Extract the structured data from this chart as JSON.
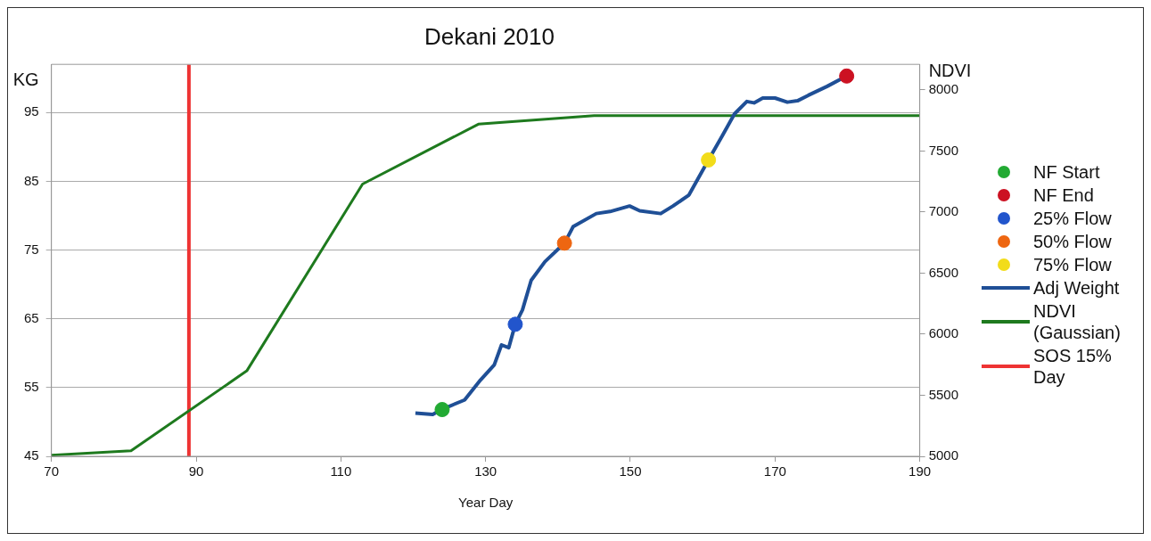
{
  "chart_data": {
    "type": "line",
    "title": "Dekani 2010",
    "xlabel": "Year Day",
    "ylabel": "KG",
    "y2label": "NDVI",
    "xlim": [
      70,
      190
    ],
    "xticks": [
      70,
      90,
      110,
      130,
      150,
      170,
      190
    ],
    "ylim": [
      45,
      102
    ],
    "yticks": [
      45,
      55,
      65,
      75,
      85,
      95
    ],
    "y2lim": [
      5000,
      8210
    ],
    "y2ticks": [
      5000,
      5500,
      6000,
      6500,
      7000,
      7500,
      8000
    ],
    "grid": "y",
    "legend": "right",
    "series": [
      {
        "name": "NF Start",
        "type": "scatter",
        "marker": "circle",
        "color": "#22aa33",
        "x": [
          124
        ],
        "values": [
          51.8
        ]
      },
      {
        "name": "NF End",
        "type": "scatter",
        "marker": "circle",
        "color": "#cc1122",
        "x": [
          179.9
        ],
        "values": [
          100.3
        ]
      },
      {
        "name": "25% Flow",
        "type": "scatter",
        "marker": "circle",
        "color": "#2255cc",
        "x": [
          134.1
        ],
        "values": [
          64.2
        ]
      },
      {
        "name": "50% Flow",
        "type": "scatter",
        "marker": "circle",
        "color": "#ee6611",
        "x": [
          140.9
        ],
        "values": [
          76.0
        ]
      },
      {
        "name": "75% Flow",
        "type": "scatter",
        "marker": "circle",
        "color": "#f2dc1a",
        "x": [
          160.8
        ],
        "values": [
          88.1
        ]
      },
      {
        "name": "Adj Weight",
        "marker": "none",
        "color": "#1f4f96",
        "x": [
          120.3,
          122.7,
          123.9,
          127.1,
          129.3,
          131.2,
          132.2,
          133.2,
          134.1,
          135.1,
          136.3,
          138.2,
          140.9,
          142.1,
          145.3,
          147.2,
          149.9,
          151.3,
          154.2,
          155.9,
          158.1,
          160.8,
          162.7,
          164.4,
          166.1,
          167.1,
          168.3,
          170.0,
          171.7,
          173.1,
          174.6,
          177.2,
          179.9
        ],
        "values": [
          51.3,
          51.1,
          51.8,
          53.2,
          56.1,
          58.3,
          61.2,
          60.8,
          64.2,
          66.3,
          70.6,
          73.3,
          76.0,
          78.4,
          80.3,
          80.6,
          81.4,
          80.7,
          80.3,
          81.4,
          83.0,
          88.1,
          91.6,
          94.8,
          96.6,
          96.4,
          97.1,
          97.1,
          96.5,
          96.7,
          97.5,
          98.8,
          100.3
        ]
      },
      {
        "name": "NDVI (Gaussian)",
        "marker": "none",
        "axis": "y2",
        "color": "#1e7a1e",
        "x": [
          70,
          81,
          97,
          113,
          129,
          145,
          161,
          177,
          190
        ],
        "values": [
          5010,
          5045,
          5700,
          7230,
          7720,
          7790,
          7790,
          7790,
          7790
        ]
      },
      {
        "name": "SOS 15% Day",
        "marker": "none",
        "color": "#ee3333",
        "x": [
          89,
          89
        ],
        "values": [
          45,
          102
        ]
      }
    ]
  }
}
